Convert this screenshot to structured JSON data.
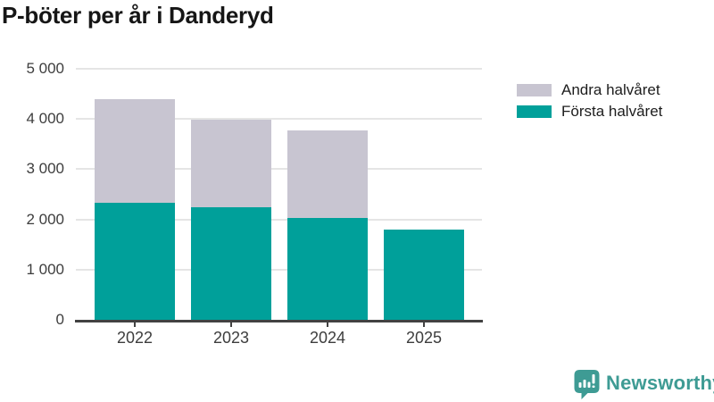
{
  "title": "P-böter per år i Danderyd",
  "chart_data": {
    "type": "bar",
    "stacked": true,
    "title": "P-böter per år i Danderyd",
    "xlabel": "",
    "ylabel": "",
    "categories": [
      "2022",
      "2023",
      "2024",
      "2025"
    ],
    "series": [
      {
        "name": "Första halvåret",
        "color": "#00a09a",
        "values": [
          2330,
          2240,
          2020,
          1790
        ]
      },
      {
        "name": "Andra halvåret",
        "color": "#c8c5d1",
        "values": [
          2070,
          1740,
          1750,
          0
        ]
      }
    ],
    "totals": [
      4400,
      3980,
      3770,
      1790
    ],
    "ylim": [
      0,
      5000
    ],
    "yticks": [
      0,
      1000,
      2000,
      3000,
      4000,
      5000
    ],
    "ytick_labels": [
      "0",
      "1 000",
      "2 000",
      "3 000",
      "4 000",
      "5 000"
    ],
    "grid": "horizontal",
    "legend_position": "right"
  },
  "legend": {
    "items": [
      {
        "label": "Andra halvåret",
        "color": "#c8c5d1"
      },
      {
        "label": "Första halvåret",
        "color": "#00a09a"
      }
    ]
  },
  "footer": {
    "brand": "Newsworthy",
    "logo_icon": "bar-chart-speech-bubble-icon",
    "brand_color": "#3e9b94"
  },
  "colors": {
    "first_half": "#00a09a",
    "second_half": "#c8c5d1",
    "axis": "#424242",
    "gridline": "#e5e5e5",
    "tick_text": "#3d3d3d",
    "title_text": "#161616"
  }
}
